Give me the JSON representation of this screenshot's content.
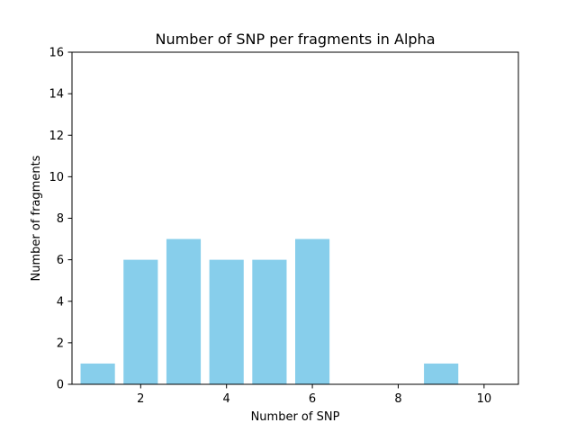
{
  "chart_data": {
    "type": "bar",
    "title": "Number of SNP per fragments in Alpha",
    "xlabel": "Number of SNP",
    "ylabel": "Number of fragments",
    "x": [
      1,
      2,
      3,
      4,
      5,
      6,
      9
    ],
    "values": [
      1,
      6,
      7,
      6,
      6,
      7,
      1
    ],
    "bar_color": "#87CEEB",
    "xlim": [
      0.4,
      10.8
    ],
    "ylim": [
      0,
      16
    ],
    "xticks": [
      2,
      4,
      6,
      8,
      10
    ],
    "yticks": [
      0,
      2,
      4,
      6,
      8,
      10,
      12,
      14,
      16
    ],
    "grid": false,
    "legend": "none"
  }
}
